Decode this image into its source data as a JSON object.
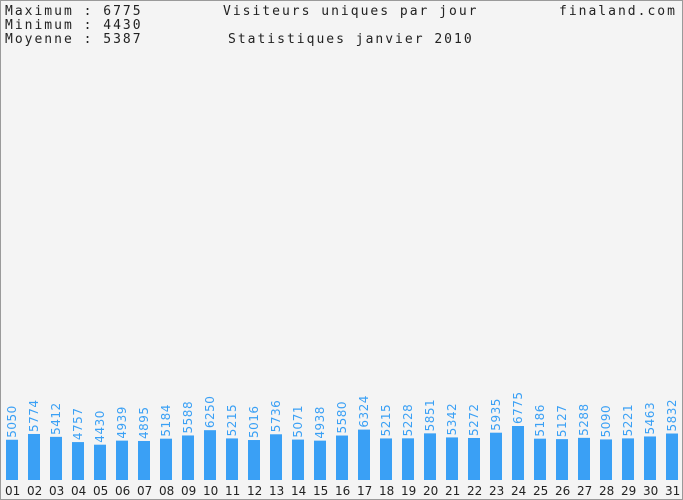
{
  "stats": {
    "max_label": "Maximum : 6775",
    "min_label": "Minimum : 4430",
    "avg_label": "Moyenne : 5387"
  },
  "header": {
    "title": "Visiteurs uniques par jour",
    "subtitle": "Statistiques janvier 2010",
    "site": "finaland.com"
  },
  "chart_data": {
    "type": "bar",
    "title": "Visiteurs uniques par jour",
    "subtitle": "Statistiques janvier 2010",
    "categories": [
      "01",
      "02",
      "03",
      "04",
      "05",
      "06",
      "07",
      "08",
      "09",
      "10",
      "11",
      "12",
      "13",
      "14",
      "15",
      "16",
      "17",
      "18",
      "19",
      "20",
      "21",
      "22",
      "23",
      "24",
      "25",
      "26",
      "27",
      "28",
      "29",
      "30",
      "31"
    ],
    "values": [
      5050,
      5774,
      5412,
      4757,
      4430,
      4939,
      4895,
      5184,
      5588,
      6250,
      5215,
      5016,
      5736,
      5071,
      4938,
      5580,
      6324,
      5215,
      5228,
      5851,
      5342,
      5272,
      5935,
      6775,
      5186,
      5127,
      5288,
      5090,
      5221,
      5463,
      5832
    ],
    "xlabel": "",
    "ylabel": "",
    "ylim": [
      0,
      6775
    ],
    "grid": false,
    "colors": {
      "bar": "#3aa0f5",
      "background": "#f4f4f4"
    }
  }
}
